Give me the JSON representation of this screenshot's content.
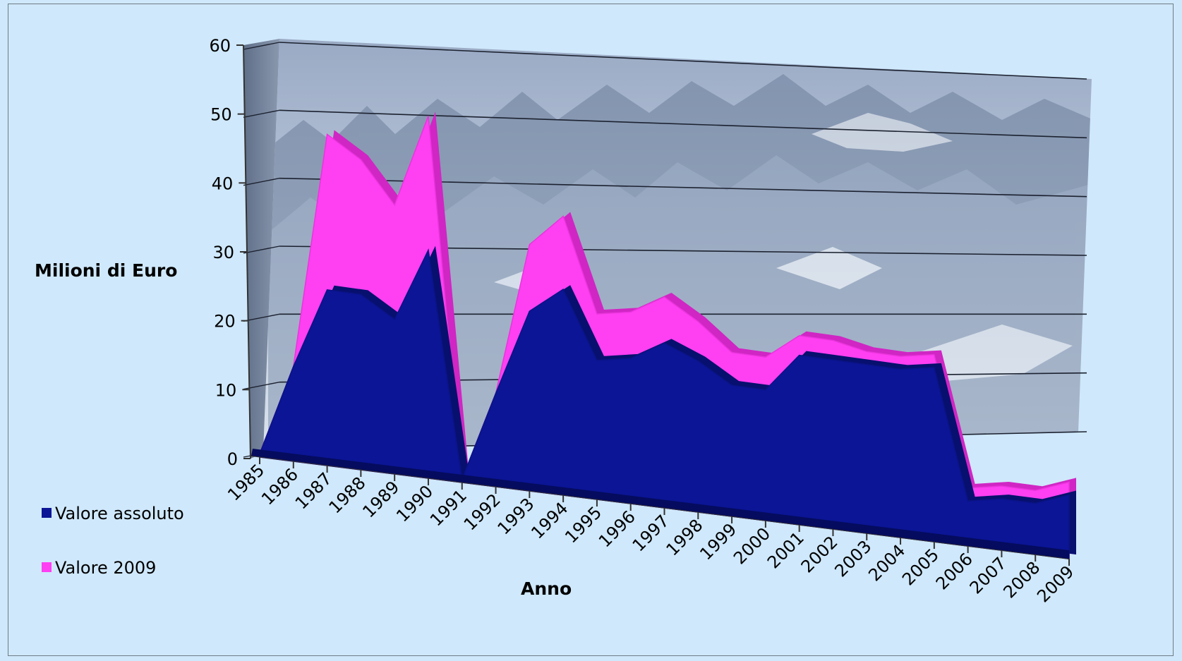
{
  "chart_data": {
    "type": "area",
    "xlabel": "Anno",
    "ylabel": "Milioni di Euro",
    "ylim": [
      0,
      60
    ],
    "yticks": [
      "0",
      "10",
      "20",
      "30",
      "40",
      "50",
      "60"
    ],
    "categories": [
      "1985",
      "1986",
      "1987",
      "1988",
      "1989",
      "1990",
      "1991",
      "1992",
      "1993",
      "1994",
      "1995",
      "1996",
      "1997",
      "1998",
      "1999",
      "2000",
      "2001",
      "2002",
      "2003",
      "2004",
      "2005",
      "2006",
      "2007",
      "2008",
      "2009"
    ],
    "series": [
      {
        "name": "Valore assoluto",
        "color": "#0b1595",
        "values": [
          0.5,
          14,
          26,
          26,
          23,
          34,
          0.5,
          14,
          27,
          31,
          21,
          22,
          25,
          23,
          20,
          20,
          26,
          26,
          26,
          26,
          27,
          7,
          8,
          8,
          10
        ]
      },
      {
        "name": "Valore 2009",
        "color": "#ff3ff2",
        "values": [
          0.5,
          14,
          49,
          46,
          40,
          54,
          0.5,
          14,
          37,
          42,
          28,
          29,
          32,
          29,
          25,
          25,
          29,
          29,
          28,
          28,
          29,
          9,
          10,
          10,
          12
        ]
      }
    ],
    "grid": true,
    "legend_position": "left-bottom",
    "background": "aerial mountain photo texture"
  }
}
